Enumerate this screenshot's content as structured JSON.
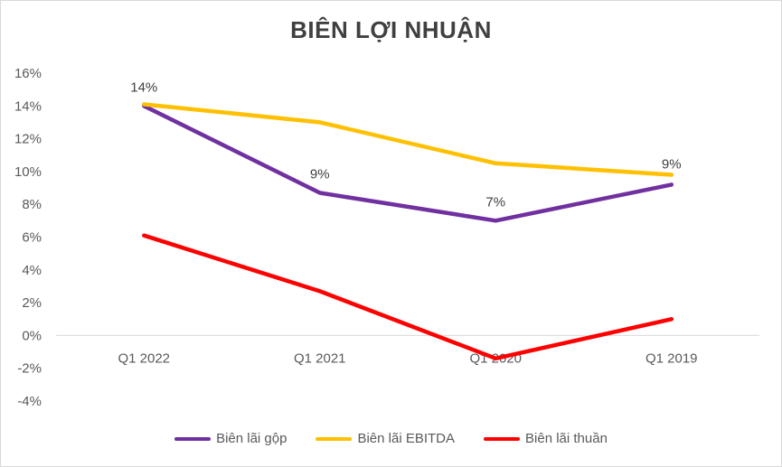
{
  "chart_data": {
    "type": "line",
    "title": "BIÊN LỢI NHUẬN",
    "categories": [
      "Q1 2022",
      "Q1 2021",
      "Q1 2020",
      "Q1 2019"
    ],
    "ylim": [
      -4,
      16
    ],
    "ytick_step": 2,
    "ytick_suffix": "%",
    "grid": false,
    "legend_position": "bottom",
    "series": [
      {
        "name": "Biên lãi gộp",
        "color": "#7030a0",
        "values": [
          14,
          8.7,
          7,
          9.2
        ],
        "data_labels": [
          "14%",
          "9%",
          "7%",
          "9%"
        ]
      },
      {
        "name": "Biên lãi EBITDA",
        "color": "#ffc000",
        "values": [
          14.1,
          13,
          10.5,
          9.8
        ]
      },
      {
        "name": "Biên lãi thuần",
        "color": "#ff0000",
        "values": [
          6.1,
          2.7,
          -1.4,
          1
        ]
      }
    ]
  }
}
